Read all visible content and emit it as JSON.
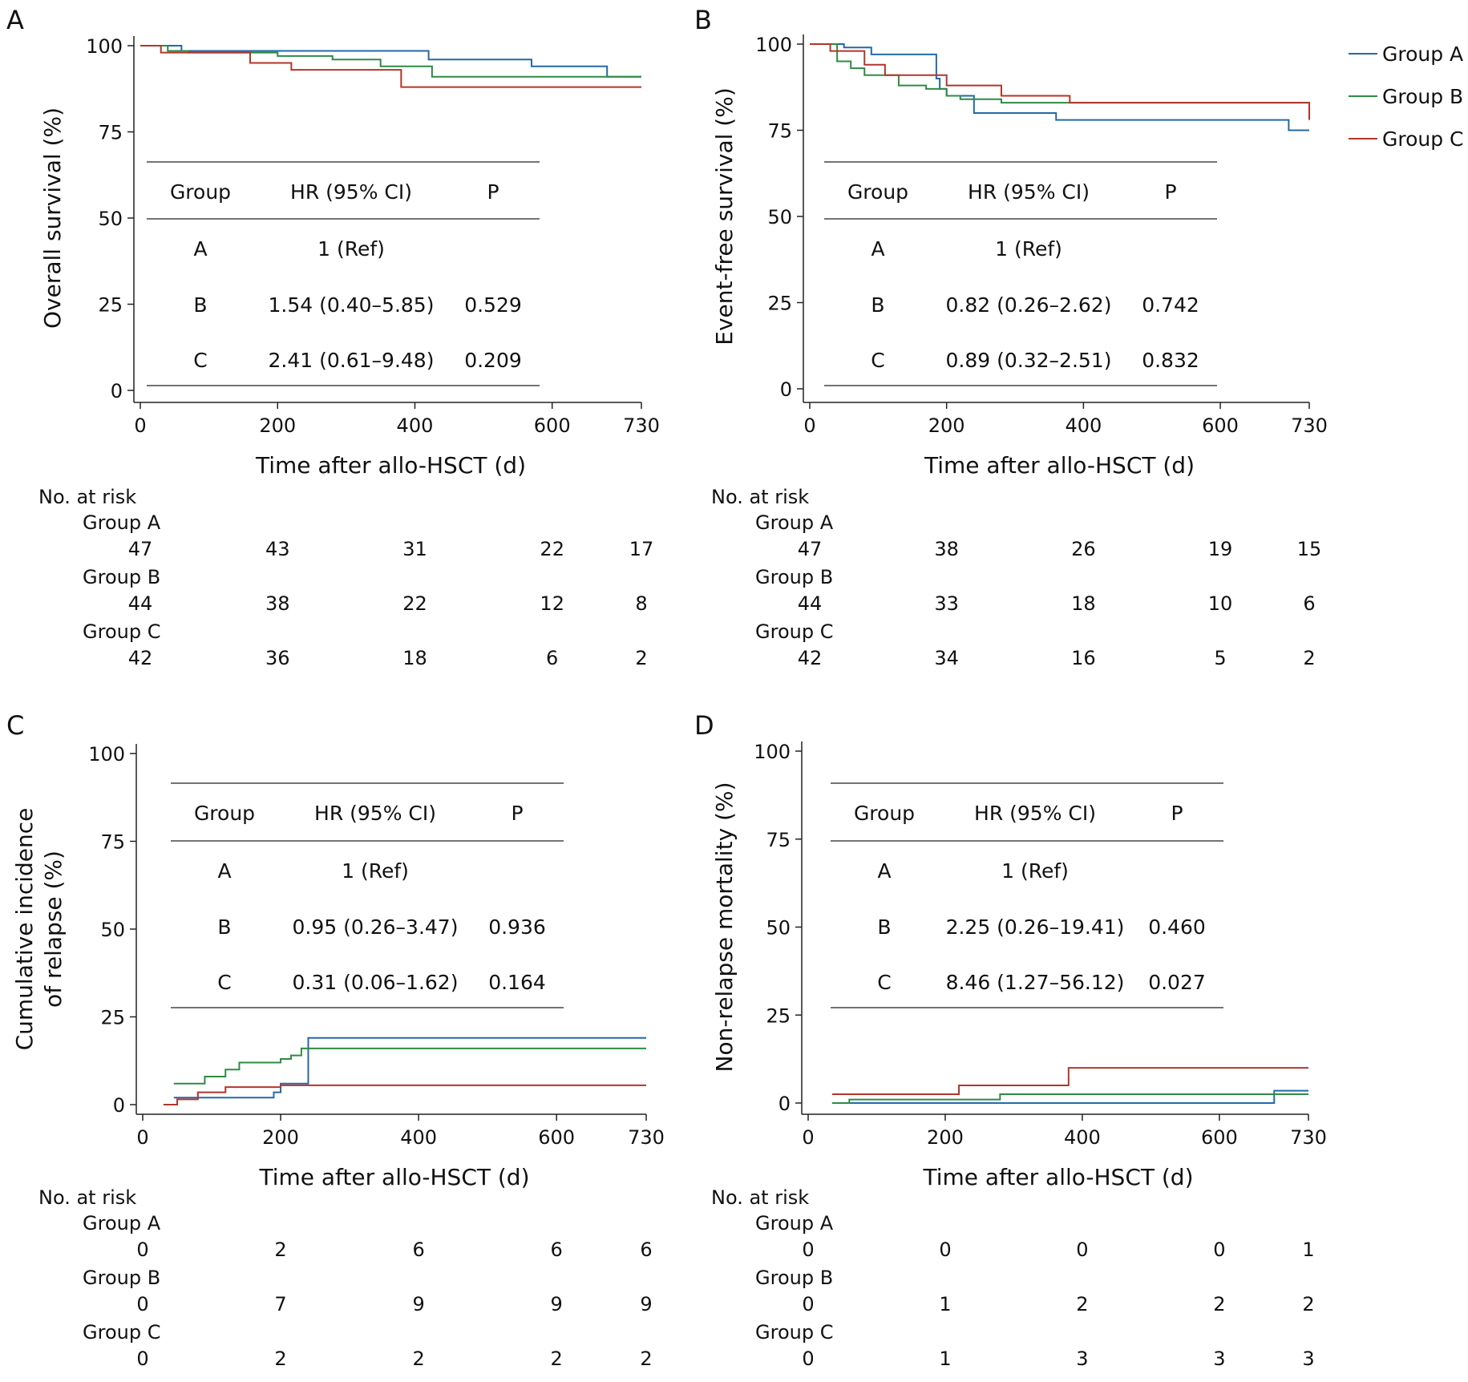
{
  "legend": [
    {
      "name": "Group A",
      "color": "#2369a8"
    },
    {
      "name": "Group B",
      "color": "#2e8b45"
    },
    {
      "name": "Group C",
      "color": "#b3352b"
    }
  ],
  "chart_data": [
    {
      "type": "line",
      "panel_label": "A",
      "xlabel": "Time after allo-HSCT (d)",
      "ylabel": [
        "Overall survival (%)"
      ],
      "xlim": [
        0,
        730
      ],
      "ylim": [
        0,
        100
      ],
      "xticks": [
        0,
        200,
        400,
        600,
        730
      ],
      "yticks": [
        0,
        25,
        50,
        75,
        100
      ],
      "series": [
        {
          "name": "Group A",
          "x": [
            0,
            60,
            160,
            420,
            570,
            680,
            730
          ],
          "y": [
            100,
            98.5,
            98.5,
            96,
            94,
            91,
            91
          ]
        },
        {
          "name": "Group B",
          "x": [
            0,
            40,
            70,
            200,
            280,
            350,
            425,
            730
          ],
          "y": [
            100,
            98.5,
            98,
            97,
            96,
            94,
            91,
            91
          ]
        },
        {
          "name": "Group C",
          "x": [
            0,
            30,
            160,
            220,
            380,
            730
          ],
          "y": [
            100,
            98,
            95,
            93,
            88,
            88
          ]
        }
      ],
      "table": {
        "header": [
          "Group",
          "HR (95% CI)",
          "P"
        ],
        "rows": [
          [
            "A",
            "1 (Ref)",
            ""
          ],
          [
            "B",
            "1.54 (0.40–5.85)",
            "0.529"
          ],
          [
            "C",
            "2.41 (0.61–9.48)",
            "0.209"
          ]
        ]
      },
      "risk": {
        "title": "No. at risk",
        "groups": [
          {
            "name": "Group A",
            "values": [
              "47",
              "43",
              "31",
              "22",
              "17"
            ]
          },
          {
            "name": "Group B",
            "values": [
              "44",
              "38",
              "22",
              "12",
              "8"
            ]
          },
          {
            "name": "Group C",
            "values": [
              "42",
              "36",
              "18",
              "6",
              "2"
            ]
          }
        ]
      }
    },
    {
      "type": "line",
      "panel_label": "B",
      "xlabel": "Time after allo-HSCT (d)",
      "ylabel": [
        "Event-free survival (%)"
      ],
      "xlim": [
        0,
        730
      ],
      "ylim": [
        0,
        100
      ],
      "xticks": [
        0,
        200,
        400,
        600,
        730
      ],
      "yticks": [
        0,
        25,
        50,
        75,
        100
      ],
      "series": [
        {
          "name": "Group A",
          "x": [
            0,
            50,
            90,
            185,
            190,
            200,
            240,
            360,
            700,
            730
          ],
          "y": [
            100,
            99,
            97,
            90,
            87,
            85,
            80,
            78,
            75,
            75
          ]
        },
        {
          "name": "Group B",
          "x": [
            0,
            40,
            60,
            80,
            130,
            170,
            200,
            220,
            280,
            730
          ],
          "y": [
            100,
            95,
            93,
            91,
            88,
            87,
            85,
            84,
            83,
            83
          ]
        },
        {
          "name": "Group C",
          "x": [
            0,
            30,
            80,
            110,
            200,
            280,
            380,
            730
          ],
          "y": [
            100,
            98,
            94,
            91,
            88,
            85,
            83,
            78
          ]
        }
      ],
      "table": {
        "header": [
          "Group",
          "HR (95% CI)",
          "P"
        ],
        "rows": [
          [
            "A",
            "1 (Ref)",
            ""
          ],
          [
            "B",
            "0.82 (0.26–2.62)",
            "0.742"
          ],
          [
            "C",
            "0.89 (0.32–2.51)",
            "0.832"
          ]
        ]
      },
      "risk": {
        "title": "No. at risk",
        "groups": [
          {
            "name": "Group A",
            "values": [
              "47",
              "38",
              "26",
              "19",
              "15"
            ]
          },
          {
            "name": "Group B",
            "values": [
              "44",
              "33",
              "18",
              "10",
              "6"
            ]
          },
          {
            "name": "Group C",
            "values": [
              "42",
              "34",
              "16",
              "5",
              "2"
            ]
          }
        ]
      }
    },
    {
      "type": "line",
      "panel_label": "C",
      "xlabel": "Time after allo-HSCT (d)",
      "ylabel": [
        "Cumulative incidence",
        "of relapse (%)"
      ],
      "xlim": [
        0,
        730
      ],
      "ylim": [
        0,
        100
      ],
      "xticks": [
        0,
        200,
        400,
        600,
        730
      ],
      "yticks": [
        0,
        25,
        50,
        75,
        100
      ],
      "series": [
        {
          "name": "Group A",
          "x": [
            45,
            120,
            190,
            200,
            240,
            730
          ],
          "y": [
            2,
            2,
            3.5,
            6,
            19,
            19
          ]
        },
        {
          "name": "Group B",
          "x": [
            45,
            90,
            120,
            140,
            200,
            215,
            230,
            730
          ],
          "y": [
            6,
            8,
            10,
            12,
            13,
            14,
            16,
            16
          ]
        },
        {
          "name": "Group C",
          "x": [
            30,
            50,
            80,
            120,
            200,
            730
          ],
          "y": [
            0,
            1.5,
            3.5,
            5,
            5.5,
            5.5
          ]
        }
      ],
      "table": {
        "header": [
          "Group",
          "HR (95% CI)",
          "P"
        ],
        "rows": [
          [
            "A",
            "1 (Ref)",
            ""
          ],
          [
            "B",
            "0.95 (0.26–3.47)",
            "0.936"
          ],
          [
            "C",
            "0.31 (0.06–1.62)",
            "0.164"
          ]
        ]
      },
      "risk": {
        "title": "No. at risk",
        "groups": [
          {
            "name": "Group A",
            "values": [
              "0",
              "2",
              "6",
              "6",
              "6"
            ]
          },
          {
            "name": "Group B",
            "values": [
              "0",
              "7",
              "9",
              "9",
              "9"
            ]
          },
          {
            "name": "Group C",
            "values": [
              "0",
              "2",
              "2",
              "2",
              "2"
            ]
          }
        ]
      }
    },
    {
      "type": "line",
      "panel_label": "D",
      "xlabel": "Time after allo-HSCT (d)",
      "ylabel": [
        "Non-relapse mortality (%)"
      ],
      "xlim": [
        0,
        730
      ],
      "ylim": [
        0,
        100
      ],
      "xticks": [
        0,
        200,
        400,
        600,
        730
      ],
      "yticks": [
        0,
        25,
        50,
        75,
        100
      ],
      "series": [
        {
          "name": "Group A",
          "x": [
            35,
            680,
            730
          ],
          "y": [
            0,
            3.5,
            3.5
          ]
        },
        {
          "name": "Group B",
          "x": [
            35,
            60,
            280,
            730
          ],
          "y": [
            0,
            1,
            2.5,
            2.5
          ]
        },
        {
          "name": "Group C",
          "x": [
            35,
            220,
            380,
            730
          ],
          "y": [
            2.5,
            5,
            10,
            10
          ]
        }
      ],
      "table": {
        "header": [
          "Group",
          "HR (95% CI)",
          "P"
        ],
        "rows": [
          [
            "A",
            "1 (Ref)",
            ""
          ],
          [
            "B",
            "2.25 (0.26–19.41)",
            "0.460"
          ],
          [
            "C",
            "8.46 (1.27–56.12)",
            "0.027"
          ]
        ]
      },
      "risk": {
        "title": "No. at risk",
        "groups": [
          {
            "name": "Group A",
            "values": [
              "0",
              "0",
              "0",
              "0",
              "1"
            ]
          },
          {
            "name": "Group B",
            "values": [
              "0",
              "1",
              "2",
              "2",
              "2"
            ]
          },
          {
            "name": "Group C",
            "values": [
              "0",
              "1",
              "3",
              "3",
              "3"
            ]
          }
        ]
      }
    }
  ]
}
